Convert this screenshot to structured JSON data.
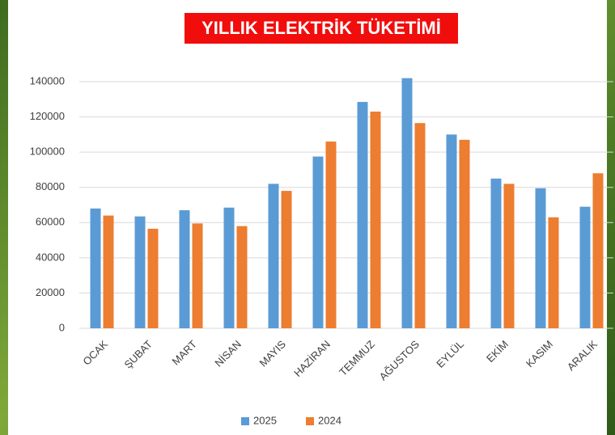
{
  "chart_data": {
    "type": "bar",
    "title": "YILLIK ELEKTRİK TÜKETİMİ",
    "categories": [
      "OCAK",
      "ŞUBAT",
      "MART",
      "NİSAN",
      "MAYIS",
      "HAZİRAN",
      "TEMMUZ",
      "AĞUSTOS",
      "EYLÜL",
      "EKİM",
      "KASIM",
      "ARALIK"
    ],
    "series": [
      {
        "name": "2025",
        "color": "#5b9bd5",
        "values": [
          68000,
          63500,
          67000,
          68500,
          82000,
          97500,
          128500,
          142000,
          110000,
          85000,
          79500,
          69000
        ]
      },
      {
        "name": "2024",
        "color": "#ed7d31",
        "values": [
          64000,
          56500,
          59500,
          58000,
          78000,
          106000,
          123000,
          116500,
          107000,
          82000,
          63000,
          88000
        ]
      }
    ],
    "ylim": [
      0,
      140000
    ],
    "yticks": [
      0,
      20000,
      40000,
      60000,
      80000,
      100000,
      120000,
      140000
    ],
    "grid": true,
    "legend": "bottom"
  }
}
